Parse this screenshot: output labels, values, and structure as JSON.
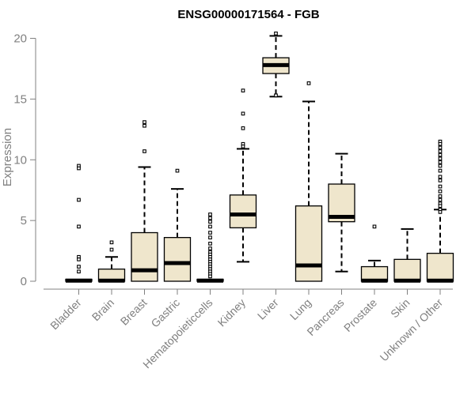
{
  "chart_data": {
    "type": "boxplot",
    "title": "ENSG00000171564 - FGB",
    "xlabel": "",
    "ylabel": "Expression",
    "ylim": [
      0,
      20
    ],
    "yticks": [
      "0",
      "5",
      "10",
      "15",
      "20"
    ],
    "box_fill": "#efe6cc",
    "categories": [
      "Bladder",
      "Brain",
      "Breast",
      "Gastric",
      "Hematopoieticcells",
      "Kidney",
      "Liver",
      "Lung",
      "Pancreas",
      "Prostate",
      "Skin",
      "Unknown / Other"
    ],
    "boxes": [
      {
        "category": "Bladder",
        "whisker_low": 0,
        "q1": 0,
        "median": 0.05,
        "q3": 0.1,
        "whisker_high": 0.1,
        "outliers": [
          9.5,
          9.3,
          6.7,
          4.5,
          2.0,
          1.8,
          1.2,
          0.8
        ]
      },
      {
        "category": "Brain",
        "whisker_low": 0,
        "q1": 0,
        "median": 0.05,
        "q3": 1.0,
        "whisker_high": 2.0,
        "outliers": [
          3.2,
          2.6
        ]
      },
      {
        "category": "Breast",
        "whisker_low": 0,
        "q1": 0,
        "median": 0.9,
        "q3": 4.0,
        "whisker_high": 9.4,
        "outliers": [
          13.1,
          12.8,
          10.7
        ]
      },
      {
        "category": "Gastric",
        "whisker_low": 0,
        "q1": 0,
        "median": 1.5,
        "q3": 3.6,
        "whisker_high": 7.6,
        "outliers": [
          9.1
        ]
      },
      {
        "category": "Hematopoieticcells",
        "whisker_low": 0,
        "q1": 0,
        "median": 0.05,
        "q3": 0.1,
        "whisker_high": 0.1,
        "outliers": [
          5.5,
          5.2,
          4.9,
          4.5,
          4.0,
          3.6,
          3.1,
          2.7,
          2.4,
          2.2,
          2.0,
          1.8,
          1.6,
          1.4,
          1.2,
          1.0,
          0.8,
          0.6,
          0.4
        ]
      },
      {
        "category": "Kidney",
        "whisker_low": 1.6,
        "q1": 4.4,
        "median": 5.5,
        "q3": 7.1,
        "whisker_high": 10.9,
        "outliers": [
          15.7,
          13.8,
          12.6,
          11.3,
          11.1
        ]
      },
      {
        "category": "Liver",
        "whisker_low": 15.2,
        "q1": 17.1,
        "median": 17.8,
        "q3": 18.4,
        "whisker_high": 20.2,
        "outliers": [
          20.4,
          15.3
        ]
      },
      {
        "category": "Lung",
        "whisker_low": 0,
        "q1": 0,
        "median": 1.3,
        "q3": 6.2,
        "whisker_high": 14.8,
        "outliers": [
          16.3
        ]
      },
      {
        "category": "Pancreas",
        "whisker_low": 0.8,
        "q1": 4.9,
        "median": 5.3,
        "q3": 8.0,
        "whisker_high": 10.5,
        "outliers": []
      },
      {
        "category": "Prostate",
        "whisker_low": 0,
        "q1": 0,
        "median": 0.05,
        "q3": 1.2,
        "whisker_high": 1.7,
        "outliers": [
          4.5
        ]
      },
      {
        "category": "Skin",
        "whisker_low": 0,
        "q1": 0,
        "median": 0.05,
        "q3": 1.8,
        "whisker_high": 4.3,
        "outliers": []
      },
      {
        "category": "Unknown / Other",
        "whisker_low": 0,
        "q1": 0,
        "median": 0.05,
        "q3": 2.3,
        "whisker_high": 5.9,
        "outliers": [
          11.5,
          11.3,
          11.0,
          10.7,
          10.4,
          10.1,
          9.8,
          9.5,
          9.1,
          8.6,
          8.3,
          7.8,
          7.4,
          7.0,
          6.7,
          6.4,
          6.2,
          5.9,
          5.7
        ]
      }
    ]
  }
}
